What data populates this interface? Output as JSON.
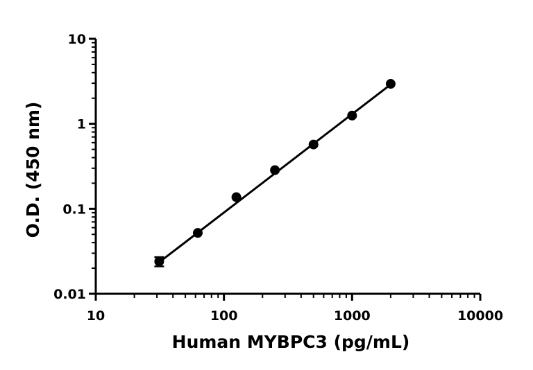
{
  "chart_data": {
    "type": "scatter",
    "title": "",
    "xlabel": "Human MYBPC3 (pg/mL)",
    "ylabel": "O.D. (450 nm)",
    "xscale": "log",
    "yscale": "log",
    "xlim": [
      10,
      10000
    ],
    "ylim": [
      0.01,
      10
    ],
    "xticks": [
      10,
      100,
      1000,
      10000
    ],
    "xtick_labels": [
      "10",
      "100",
      "1000",
      "10000"
    ],
    "yticks": [
      0.01,
      0.1,
      1,
      10
    ],
    "ytick_labels": [
      "0.01",
      "0.1",
      "1",
      "10"
    ],
    "grid": false,
    "legend": "none",
    "series": [
      {
        "x": [
          31.25,
          62.5,
          125,
          250,
          500,
          1000,
          2000
        ],
        "y": [
          0.024,
          0.052,
          0.137,
          0.285,
          0.57,
          1.25,
          2.95
        ],
        "y_error": [
          0.003,
          0,
          0,
          0,
          0,
          0,
          0
        ]
      }
    ],
    "fit_line": {
      "x": [
        31.25,
        2000
      ],
      "y": [
        0.0235,
        2.9
      ]
    },
    "colors": {
      "marks": "#000000",
      "background": "#ffffff"
    }
  }
}
